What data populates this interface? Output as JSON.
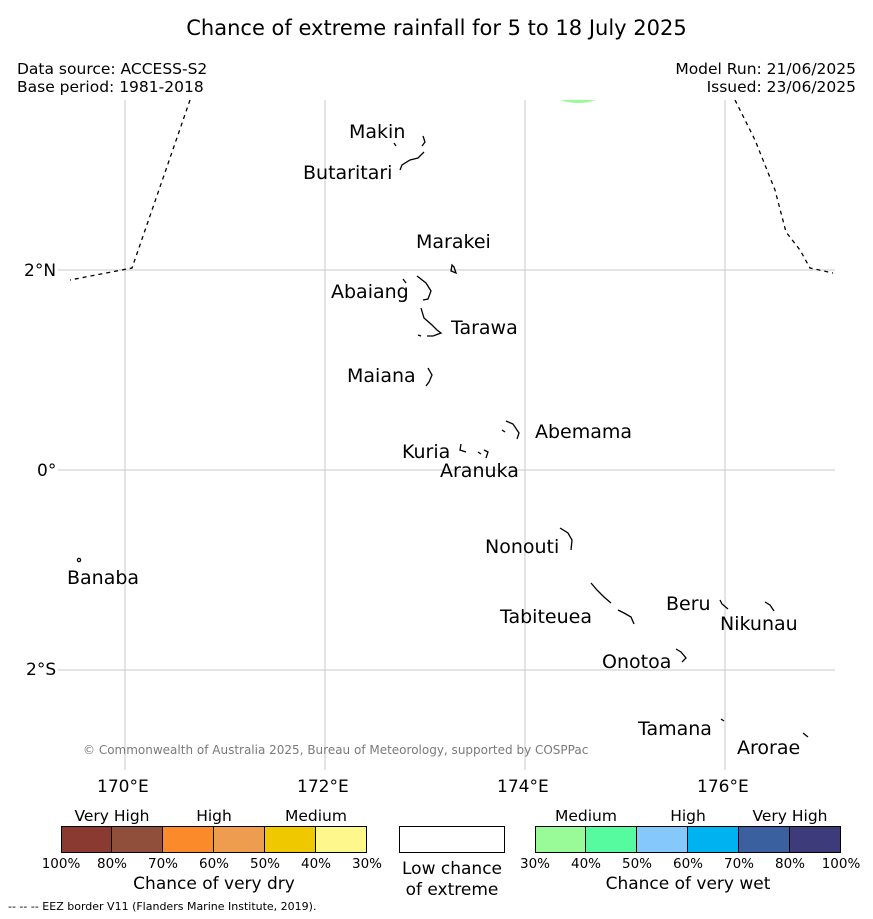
{
  "title": "Chance of extreme rainfall for 5 to 18 July 2025",
  "data_source": "Data source: ACCESS-S2",
  "base_period": "Base period: 1981-2018",
  "model_run": "Model Run: 21/06/2025",
  "issued": "Issued: 23/06/2025",
  "copyright": "© Commonwealth of Australia 2025, Bureau of Meteorology, supported by COSPPac",
  "eez_note": "--  --  -- EEZ border V11 (Flanders Marine Institute, 2019).",
  "lon_ticks": [
    "170°E",
    "172°E",
    "174°E",
    "176°E"
  ],
  "lat_ticks": [
    "2°N",
    "0°",
    "2°S"
  ],
  "places": {
    "makin": "Makin",
    "butaritari": "Butaritari",
    "marakei": "Marakei",
    "abaiang": "Abaiang",
    "tarawa": "Tarawa",
    "maiana": "Maiana",
    "abemama": "Abemama",
    "kuria": "Kuria",
    "aranuka": "Aranuka",
    "nonouti": "Nonouti",
    "banaba": "Banaba",
    "beru": "Beru",
    "tabiteuea": "Tabiteuea",
    "nikunau": "Nikunau",
    "onotoa": "Onotoa",
    "tamana": "Tamana",
    "arorae": "Arorae"
  },
  "legend_dry": {
    "headers": [
      "Very High",
      "High",
      "Medium"
    ],
    "colors": [
      "#8b3a32",
      "#8f4f3b",
      "#fb8a2b",
      "#ee9c4e",
      "#f0c800",
      "#fdf78c"
    ],
    "ticks": [
      "100%",
      "80%",
      "70%",
      "60%",
      "50%",
      "40%",
      "30%"
    ],
    "caption": "Chance of very dry"
  },
  "legend_low": {
    "line1": "Low chance",
    "line2": "of extreme",
    "color": "#ffffff"
  },
  "legend_wet": {
    "headers": [
      "Medium",
      "High",
      "Very High"
    ],
    "colors": [
      "#98fb98",
      "#57fb9f",
      "#85c8fb",
      "#00b2f0",
      "#3b60a0",
      "#3d3b7a"
    ],
    "ticks": [
      "30%",
      "40%",
      "50%",
      "60%",
      "70%",
      "80%",
      "100%"
    ],
    "caption": "Chance of very wet"
  }
}
